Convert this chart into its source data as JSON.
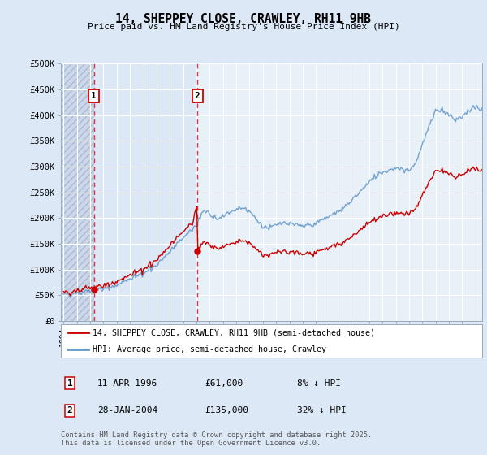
{
  "title": "14, SHEPPEY CLOSE, CRAWLEY, RH11 9HB",
  "subtitle": "Price paid vs. HM Land Registry's House Price Index (HPI)",
  "ylim": [
    0,
    500000
  ],
  "yticks": [
    0,
    50000,
    100000,
    150000,
    200000,
    250000,
    300000,
    350000,
    400000,
    450000,
    500000
  ],
  "ytick_labels": [
    "£0",
    "£50K",
    "£100K",
    "£150K",
    "£200K",
    "£250K",
    "£300K",
    "£350K",
    "£400K",
    "£450K",
    "£500K"
  ],
  "bg_color": "#dce8f5",
  "plot_bg": "#e8f0f8",
  "hatch_bg": "#c8d8ec",
  "mid_bg": "#dce8f5",
  "red_line_color": "#cc0000",
  "blue_line_color": "#6699cc",
  "dashed_line_color": "#dd2222",
  "sale1_year_f": 1996.28,
  "sale1_price": 61000,
  "sale2_year_f": 2004.07,
  "sale2_price": 135000,
  "legend_red": "14, SHEPPEY CLOSE, CRAWLEY, RH11 9HB (semi-detached house)",
  "legend_blue": "HPI: Average price, semi-detached house, Crawley",
  "sale1_date": "11-APR-1996",
  "sale1_pct": "8% ↓ HPI",
  "sale2_date": "28-JAN-2004",
  "sale2_pct": "32% ↓ HPI",
  "footer": "Contains HM Land Registry data © Crown copyright and database right 2025.\nThis data is licensed under the Open Government Licence v3.0.",
  "xmin": 1993.8,
  "xmax": 2025.5
}
